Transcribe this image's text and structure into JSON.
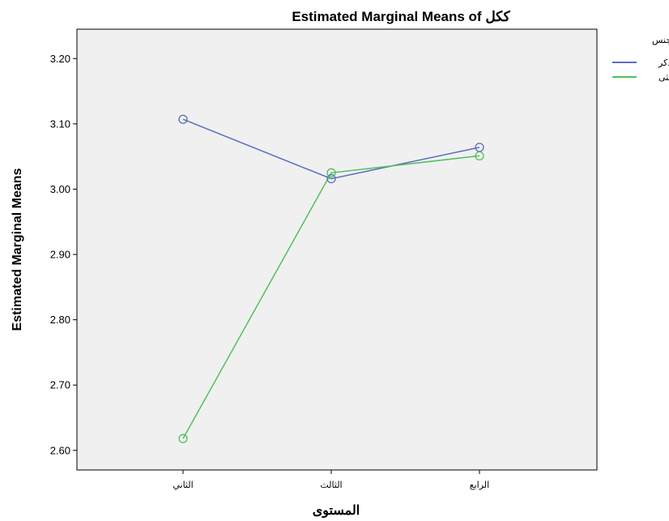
{
  "chart_data": {
    "type": "line",
    "title": "Estimated Marginal Means of ككل",
    "xlabel": "المستوى",
    "ylabel": "Estimated Marginal Means",
    "categories": [
      "الثاني",
      "الثالث",
      "الرابع"
    ],
    "ylim": [
      2.57,
      3.245
    ],
    "yticks": [
      "2.60",
      "2.70",
      "2.80",
      "2.90",
      "3.00",
      "3.10",
      "3.20"
    ],
    "grid": false,
    "legend": {
      "title": "الجنس",
      "position": "top-right"
    },
    "series": [
      {
        "name": "ذكر",
        "color": "#5a6fbf",
        "values": [
          3.107,
          3.016,
          3.064
        ]
      },
      {
        "name": "انثى",
        "color": "#4fc15a",
        "values": [
          2.618,
          3.025,
          3.051
        ]
      }
    ],
    "plot_background": "#f0f0f0"
  }
}
